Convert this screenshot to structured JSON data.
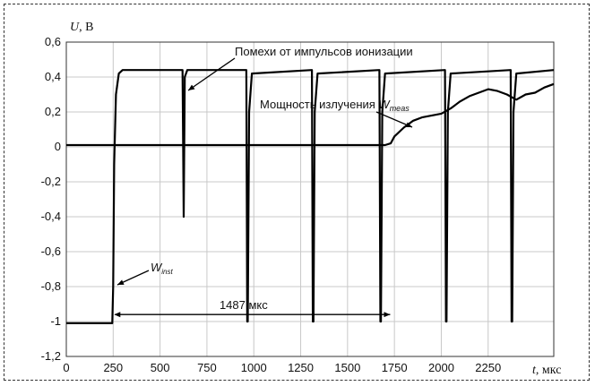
{
  "chart_data": {
    "type": "line",
    "ylabel_symbol": "U",
    "ylabel_unit": ", В",
    "xlabel_symbol": "t",
    "xlabel_unit": ", мкс",
    "xlim": [
      0,
      2600
    ],
    "ylim": [
      -1.2,
      0.6
    ],
    "x_ticks": [
      0,
      250,
      500,
      750,
      1000,
      1250,
      1500,
      1750,
      2000,
      2250
    ],
    "x_tick_labels": [
      "0",
      "250",
      "500",
      "750",
      "1000",
      "1250",
      "1500",
      "1750",
      "2000",
      "2250"
    ],
    "y_ticks": [
      0.6,
      0.4,
      0.2,
      0,
      -0.2,
      -0.4,
      -0.6,
      -0.8,
      -1,
      -1.2
    ],
    "y_tick_labels": [
      "0,6",
      "0,4",
      "0,2",
      "0",
      "-0,2",
      "-0,4",
      "-0,6",
      "-0,8",
      "-1",
      "-1,2"
    ],
    "grid": true,
    "series": [
      {
        "color": "#000000",
        "x": [
          0,
          245,
          250,
          255,
          265,
          280,
          300,
          620,
          623,
          626,
          629,
          632,
          645,
          960,
          965,
          968,
          975,
          990,
          1310,
          1315,
          1318,
          1325,
          1340,
          1670,
          1675,
          1678,
          1685,
          1700,
          2020,
          2025,
          2028,
          2035,
          2050,
          2370,
          2375,
          2378,
          2385,
          2400,
          2600
        ],
        "y": [
          -1.01,
          -1.01,
          -0.8,
          -0.1,
          0.3,
          0.42,
          0.44,
          0.44,
          0.0,
          -0.4,
          0.0,
          0.4,
          0.44,
          0.44,
          -1.0,
          -1.0,
          0.2,
          0.42,
          0.44,
          -1.0,
          -1.0,
          0.2,
          0.42,
          0.44,
          -1.0,
          -1.0,
          0.2,
          0.42,
          0.44,
          -1.0,
          -1.0,
          0.2,
          0.42,
          0.44,
          -1.0,
          -1.0,
          0.2,
          0.42,
          0.44
        ]
      },
      {
        "color": "#000000",
        "x": [
          0,
          1700,
          1730,
          1750,
          1800,
          1850,
          1900,
          1950,
          2000,
          2050,
          2100,
          2150,
          2200,
          2250,
          2300,
          2350,
          2400,
          2450,
          2500,
          2550,
          2600
        ],
        "y": [
          0.01,
          0.01,
          0.02,
          0.06,
          0.11,
          0.15,
          0.17,
          0.18,
          0.19,
          0.22,
          0.26,
          0.29,
          0.31,
          0.33,
          0.32,
          0.3,
          0.27,
          0.3,
          0.31,
          0.34,
          0.36
        ]
      }
    ],
    "annotations": {
      "noise": "Помехи от импульсов ионизации",
      "power_text": "Мощность излучения ",
      "power_symbol": "W",
      "power_sub": "meas",
      "winst_symbol": "W",
      "winst_sub": "inst",
      "interval_label": "1487 мкс",
      "interval_start_x": 250,
      "interval_end_x": 1737,
      "interval_y": -0.96
    }
  }
}
